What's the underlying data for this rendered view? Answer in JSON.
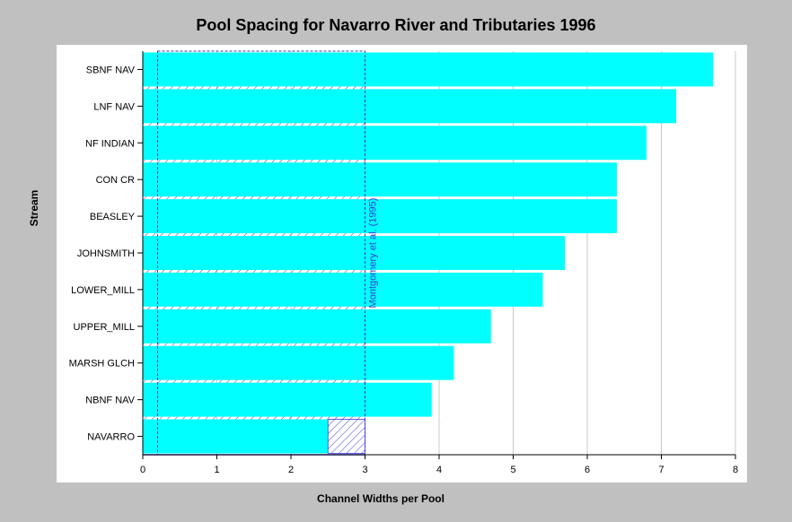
{
  "chart_data": {
    "type": "bar",
    "orientation": "horizontal",
    "title": "Pool Spacing for Navarro River and Tributaries 1996",
    "xlabel": "Channel Widths per Pool",
    "ylabel": "Stream",
    "xlim": [
      0,
      8
    ],
    "xticks": [
      "0",
      "1",
      "2",
      "3",
      "4",
      "5",
      "6",
      "7",
      "8"
    ],
    "grid": "vertical",
    "categories": [
      "SBNF NAV",
      "LNF NAV",
      "NF INDIAN",
      "CON CR",
      "BEASLEY",
      "JOHNSMITH",
      "LOWER_MILL",
      "UPPER_MILL",
      "MARSH GLCH",
      "NBNF NAV",
      "NAVARRO"
    ],
    "values": [
      7.7,
      7.2,
      6.8,
      6.4,
      6.4,
      5.7,
      5.4,
      4.7,
      4.2,
      3.9,
      2.5
    ],
    "reference": {
      "label": "Montgomery et al. (1995)",
      "range": [
        0.2,
        3.0
      ]
    },
    "colors": {
      "bar": "#00ffff",
      "reference": "#3a3ad6",
      "plot_background": "#ffffff",
      "page_background": "#c0c0c0"
    }
  }
}
